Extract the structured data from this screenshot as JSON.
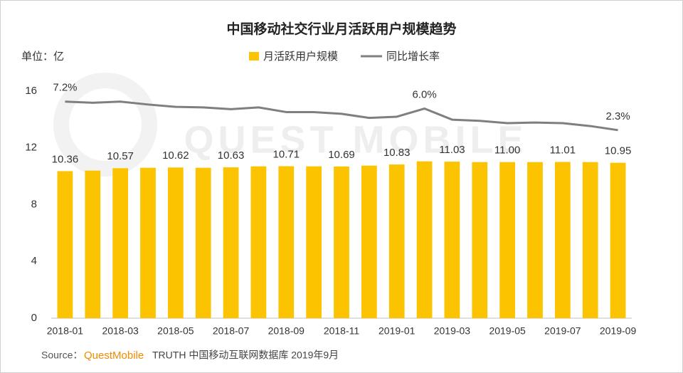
{
  "chart_data": {
    "type": "bar",
    "title": "中国移动社交行业月活跃用户规模趋势",
    "unit_label": "单位：亿",
    "watermark": "QUEST MOBILE",
    "categories": [
      "2018-01",
      null,
      "2018-03",
      null,
      "2018-05",
      null,
      "2018-07",
      null,
      "2018-09",
      null,
      "2018-11",
      null,
      "2019-01",
      null,
      "2019-03",
      null,
      "2019-05",
      null,
      "2019-07",
      null,
      "2019-09"
    ],
    "series": [
      {
        "name": "月活跃用户规模",
        "type": "bar",
        "color": "#fcc400",
        "values": [
          10.36,
          10.4,
          10.57,
          10.6,
          10.62,
          10.6,
          10.63,
          10.7,
          10.71,
          10.7,
          10.69,
          10.75,
          10.83,
          11.05,
          11.03,
          11.0,
          11.0,
          11.0,
          11.01,
          11.0,
          10.95
        ],
        "value_labels": [
          "10.36",
          null,
          "10.57",
          null,
          "10.62",
          null,
          "10.63",
          null,
          "10.71",
          null,
          "10.69",
          null,
          "10.83",
          null,
          "11.03",
          null,
          "11.00",
          null,
          "11.01",
          null,
          "10.95"
        ]
      },
      {
        "name": "同比增长率",
        "type": "line",
        "axis": "y2",
        "color": "#7f7f7f",
        "values": [
          7.2,
          7.0,
          7.2,
          6.7,
          6.3,
          6.2,
          5.9,
          6.2,
          5.4,
          5.4,
          5.1,
          4.4,
          4.6,
          6.0,
          4.1,
          3.9,
          3.5,
          3.6,
          3.5,
          3.0,
          2.3
        ],
        "value_labels": [
          "7.2%",
          null,
          null,
          null,
          null,
          null,
          null,
          null,
          null,
          null,
          null,
          null,
          null,
          "6.0%",
          null,
          null,
          null,
          null,
          null,
          null,
          "2.3%"
        ]
      }
    ],
    "ylim": [
      0,
      16
    ],
    "yticks": [
      0,
      4,
      8,
      12,
      16
    ],
    "y2lim": [
      -30,
      9
    ],
    "legend": "top",
    "source": {
      "label": "Source：",
      "brand": "QuestMobile",
      "text": "TRUTH 中国移动互联网数据库 2019年9月"
    }
  }
}
